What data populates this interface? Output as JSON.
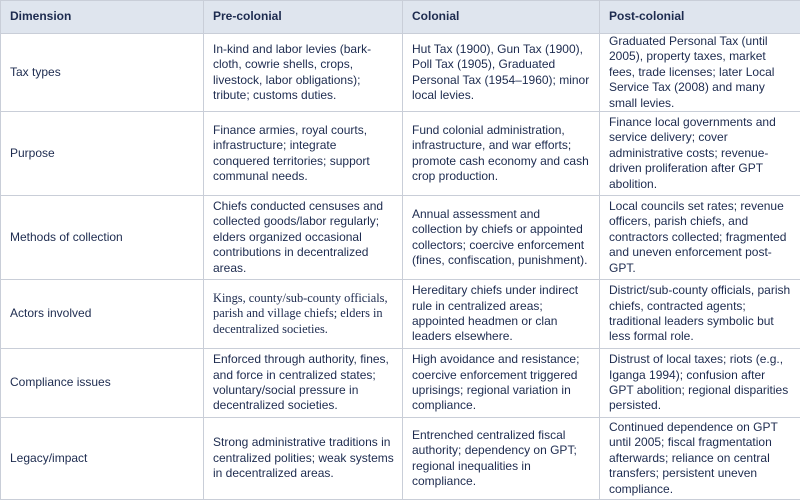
{
  "table": {
    "header": [
      "Dimension",
      "Pre-colonial",
      "Colonial",
      "Post-colonial"
    ],
    "rows": [
      [
        "Tax types",
        "In-kind and labor levies (bark-cloth, cowrie shells, crops, livestock, labor obligations); tribute; customs duties.",
        "Hut Tax (1900), Gun Tax (1900), Poll Tax (1905), Graduated Personal Tax (1954–1960); minor local levies.",
        "Graduated Personal Tax (until 2005), property taxes, market fees, trade licenses; later Local Service Tax (2008) and many small levies."
      ],
      [
        "Purpose",
        "Finance armies, royal courts, infrastructure; integrate conquered territories; support communal needs.",
        "Fund colonial administration, infrastructure, and war efforts; promote cash economy and cash crop production.",
        "Finance local governments and service delivery; cover administrative costs; revenue-driven proliferation after GPT abolition."
      ],
      [
        "Methods of collection",
        "Chiefs conducted censuses and collected goods/labor regularly; elders organized occasional contributions in decentralized areas.",
        "Annual assessment and collection by chiefs or appointed collectors; coercive enforcement (fines, confiscation, punishment).",
        "Local councils set rates; revenue officers, parish chiefs, and contractors collected; fragmented and uneven enforcement post-GPT."
      ],
      [
        "Actors involved",
        "Kings, county/sub-county officials, parish and village chiefs; elders in decentralized societies.",
        "Hereditary chiefs under indirect rule in centralized areas; appointed headmen or clan leaders elsewhere.",
        "District/sub-county officials, parish chiefs, contracted agents; traditional leaders symbolic but less formal role."
      ],
      [
        "Compliance issues",
        "Enforced through authority, fines, and force in centralized states; voluntary/social pressure in decentralized societies.",
        "High avoidance and resistance; coercive enforcement triggered uprisings; regional variation in compliance.",
        "Distrust of local taxes; riots (e.g., Iganga 1994); confusion after GPT abolition; regional disparities persisted."
      ],
      [
        "Legacy/impact",
        "Strong administrative traditions in centralized polities; weak systems in decentralized areas.",
        "Entrenched centralized fiscal authority; dependency on GPT; regional inequalities in compliance.",
        "Continued dependence on GPT until 2005; fiscal fragmentation afterwards; reliance on central transfers; persistent uneven compliance."
      ]
    ]
  }
}
